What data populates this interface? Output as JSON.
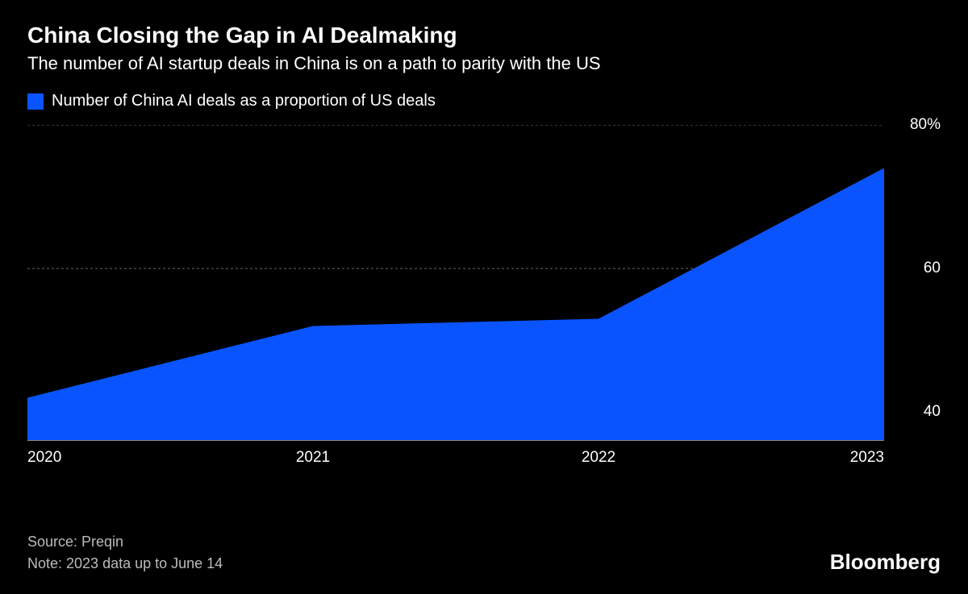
{
  "title": "China Closing the Gap in AI Dealmaking",
  "subtitle": "The number of AI startup deals in China is on a path to parity with the US",
  "legend": {
    "swatch_color": "#0a54ff",
    "label": "Number of China AI deals as a proportion of US deals"
  },
  "chart": {
    "type": "area",
    "background_color": "#000000",
    "area_color": "#0a54ff",
    "grid_color": "#666666",
    "axis_line_color": "#888888",
    "text_color": "#ffffff",
    "x_categories": [
      "2020",
      "2021",
      "2022",
      "2023"
    ],
    "y_values": [
      42,
      52,
      53,
      74
    ],
    "y_baseline": 36,
    "y_max": 80,
    "y_ticks": [
      {
        "value": 40,
        "label": "40"
      },
      {
        "value": 60,
        "label": "60"
      },
      {
        "value": 80,
        "label": "80%"
      }
    ],
    "grid_at": [
      60,
      80
    ],
    "label_fontsize": 19
  },
  "footer": {
    "source": "Source: Preqin",
    "note": "Note: 2023 data up to June 14",
    "brand": "Bloomberg"
  }
}
